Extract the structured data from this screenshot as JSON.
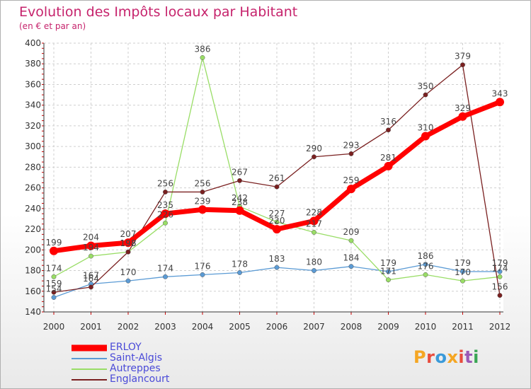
{
  "title": "Evolution des Impôts locaux par Habitant",
  "subtitle": "(en € et par an)",
  "logo_text": "Proxiti",
  "colors": {
    "erloy": "#ff0000",
    "saint_algis": "#5b9bd5",
    "autreppes": "#99dd66",
    "englancourt": "#7a2020",
    "title": "#c6236c",
    "legend_text": "#4a4ad8"
  },
  "chart_data": {
    "type": "line",
    "title": "Evolution des Impôts locaux par Habitant",
    "subtitle": "(en € et par an)",
    "xlabel": "",
    "ylabel": "",
    "categories": [
      "2000",
      "2001",
      "2002",
      "2003",
      "2004",
      "2005",
      "2006",
      "2007",
      "2008",
      "2009",
      "2010",
      "2011",
      "2012"
    ],
    "ylim": [
      140,
      400
    ],
    "yticks": [
      140,
      160,
      180,
      200,
      220,
      240,
      260,
      280,
      300,
      320,
      340,
      360,
      380,
      400
    ],
    "grid": true,
    "legend_position": "bottom-left",
    "series": [
      {
        "name": "ERLOY",
        "color": "#ff0000",
        "values": [
          199,
          204,
          207,
          235,
          239,
          238,
          220,
          228,
          259,
          281,
          310,
          329,
          343
        ]
      },
      {
        "name": "Saint-Algis",
        "color": "#5b9bd5",
        "values": [
          154,
          167,
          170,
          174,
          176,
          178,
          183,
          180,
          184,
          179,
          186,
          179,
          179
        ]
      },
      {
        "name": "Autreppes",
        "color": "#99dd66",
        "values": [
          174,
          194,
          198,
          226,
          386,
          242,
          227,
          217,
          209,
          171,
          176,
          170,
          174
        ]
      },
      {
        "name": "Englancourt",
        "color": "#7a2020",
        "values": [
          159,
          164,
          198,
          256,
          256,
          267,
          261,
          290,
          293,
          316,
          350,
          379,
          156
        ]
      }
    ]
  }
}
